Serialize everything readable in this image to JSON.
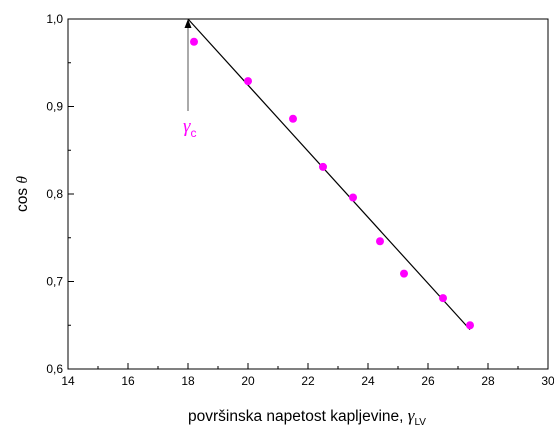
{
  "chart_data": {
    "type": "scatter",
    "xlim": [
      14,
      30
    ],
    "ylim": [
      0.6,
      1.0
    ],
    "x_ticks": [
      "14",
      "16",
      "18",
      "20",
      "22",
      "24",
      "26",
      "28",
      "30"
    ],
    "y_ticks": [
      "0,6",
      "0,7",
      "0,8",
      "0,9",
      "1,0"
    ],
    "xlabel": "površinska napetost kapljevine,",
    "xlabel_symbol": "γ",
    "xlabel_subscript": "LV",
    "ylabel": "cos",
    "ylabel_symbol": "θ",
    "grid": false,
    "series": [
      {
        "type": "scatter",
        "color": "#ff00ff",
        "x": [
          18.2,
          20.0,
          21.5,
          22.5,
          23.5,
          24.4,
          25.2,
          26.5,
          27.4
        ],
        "y": [
          0.974,
          0.929,
          0.886,
          0.831,
          0.796,
          0.746,
          0.709,
          0.681,
          0.65
        ]
      },
      {
        "type": "line",
        "color": "#000000",
        "x": [
          18.0,
          27.4
        ],
        "y": [
          1.0,
          0.645
        ]
      }
    ],
    "annotation": {
      "text": "γ",
      "subscript": "c",
      "color": "#ff00ff",
      "x": 18.0,
      "y": 1.0
    }
  }
}
